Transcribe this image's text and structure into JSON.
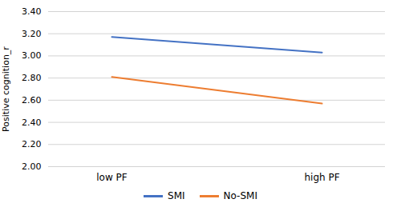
{
  "chart_data": {
    "type": "line",
    "categories": [
      "low PF",
      "high PF"
    ],
    "series": [
      {
        "name": "SMI",
        "color": "#4472C4",
        "values": [
          3.17,
          3.03
        ]
      },
      {
        "name": "No-SMI",
        "color": "#ED7D31",
        "values": [
          2.81,
          2.57
        ]
      }
    ],
    "ylabel": "Positive cognition_r",
    "ylim": [
      2.0,
      3.4
    ],
    "yticks": [
      {
        "value": 2.0,
        "label": "2.00"
      },
      {
        "value": 2.2,
        "label": "2.20"
      },
      {
        "value": 2.4,
        "label": "2.40"
      },
      {
        "value": 2.6,
        "label": "2.60"
      },
      {
        "value": 2.8,
        "label": "2.80"
      },
      {
        "value": 3.0,
        "label": "3.00"
      },
      {
        "value": 3.2,
        "label": "3.20"
      },
      {
        "value": 3.4,
        "label": "3.40"
      }
    ],
    "grid": true,
    "legend": "bottom"
  }
}
